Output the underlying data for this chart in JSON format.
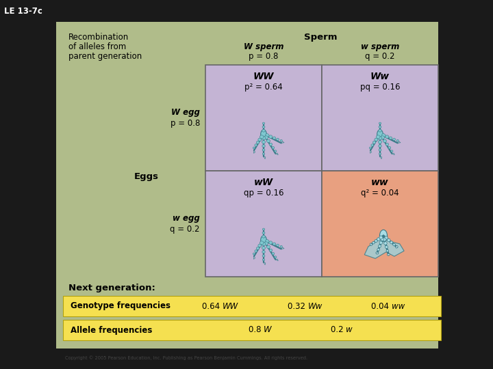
{
  "title_label": "LE 13-7c",
  "outer_bg": "#1a1a1a",
  "main_panel_color": "#b0bc8a",
  "left_title_line1": "Recombination",
  "left_title_line2": "of alleles from",
  "left_title_line3": "parent generation",
  "sperm_label": "Sperm",
  "w_sperm_label": "W sperm",
  "w_sperm_p": "p = 0.8",
  "w_sperm2_label": "w sperm",
  "w_sperm2_q": "q = 0.2",
  "eggs_label": "Eggs",
  "w_egg_label": "W egg",
  "w_egg_p": "p = 0.8",
  "w_egg2_label": "w egg",
  "w_egg2_q": "q = 0.2",
  "cell_color_purple": "#c4b4d4",
  "cell_color_orange": "#e8a080",
  "cell_topleft_line1": "WW",
  "cell_topleft_line2": "p² = 0.64",
  "cell_topright_line1": "Ww",
  "cell_topright_line2": "pq = 0.16",
  "cell_botleft_line1": "wW",
  "cell_botleft_line2": "qp = 0.16",
  "cell_botright_line1": "ww",
  "cell_botright_line2": "q² = 0.04",
  "next_gen_label": "Next generation:",
  "geno_bar_color": "#f5e050",
  "geno_label": "Genotype frequencies",
  "geno_val1": "0.64 WW",
  "geno_val2": "0.32 Ww",
  "geno_val3": "0.04 ww",
  "allele_label": "Allele frequencies",
  "allele_val1": "0.8 W",
  "allele_val2": "0.2 w",
  "copyright": "Copyright © 2005 Pearson Education, Inc. Publishing as Pearson Benjamin Cummings. All rights reserved.",
  "claw_color": "#80c8d0",
  "claw_edge": "#3a7a88",
  "claw_light": "#a8dce4"
}
